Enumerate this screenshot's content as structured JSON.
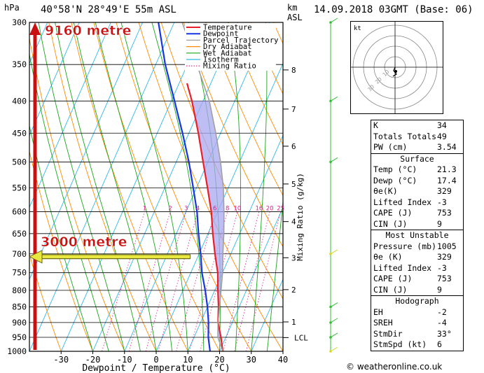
{
  "header": {
    "hpa_label": "hPa",
    "location": "40°58'N  28°49'E  55m  ASL",
    "km_label": "km",
    "asl_label": "ASL",
    "datetime": "14.09.2018  03GMT  (Base: 06)"
  },
  "colors": {
    "temperature": "#e8202a",
    "dewpoint": "#1636e6",
    "parcel": "#a0a0a0",
    "dry_adiabat": "#ff8c00",
    "wet_adiabat": "#1aa51a",
    "isotherm": "#30b8e8",
    "mixing_ratio": "#e0208a",
    "cape_fill": "#a8a8f0",
    "annotation_red": "#c81010",
    "annotation_yellow": "#e8e840",
    "wind_barb": "#30c030"
  },
  "chart_data": {
    "type": "line",
    "title": "",
    "xlabel": "Dewpoint / Temperature (°C)",
    "ylabel": "hPa",
    "right_axis_label": "Mixing Ratio (g/kg)",
    "xlim": [
      -40,
      40
    ],
    "ylim": [
      1000,
      300
    ],
    "y_scale": "log",
    "x_ticks": [
      -30,
      -20,
      -10,
      0,
      10,
      20,
      30,
      40
    ],
    "pressure_ticks": [
      300,
      350,
      400,
      450,
      500,
      550,
      600,
      650,
      700,
      750,
      800,
      850,
      900,
      950,
      1000
    ],
    "km_ticks": [
      {
        "label": "8",
        "p": 357
      },
      {
        "label": "7",
        "p": 412
      },
      {
        "label": "6",
        "p": 472
      },
      {
        "label": "5",
        "p": 542
      },
      {
        "label": "4",
        "p": 622
      },
      {
        "label": "3",
        "p": 710
      },
      {
        "label": "2",
        "p": 798
      },
      {
        "label": "1",
        "p": 898
      },
      {
        "label": "LCL",
        "p": 951
      }
    ],
    "mixing_ratio_labels": [
      "1",
      "2",
      "3",
      "4",
      "6",
      "8",
      "10",
      "16",
      "20",
      "25"
    ],
    "mixing_ratio_values": [
      1,
      2,
      3,
      4,
      6,
      8,
      10,
      16,
      20,
      25
    ],
    "legend": [
      "Temperature",
      "Dewpoint",
      "Parcel Trajectory",
      "Dry Adiabat",
      "Wet Adiabat",
      "Isotherm",
      "Mixing Ratio"
    ],
    "series": [
      {
        "name": "Temperature",
        "points": [
          [
            1005,
            21.3
          ],
          [
            1000,
            21.0
          ],
          [
            950,
            18.5
          ],
          [
            900,
            15.5
          ],
          [
            850,
            13.5
          ],
          [
            800,
            11.0
          ],
          [
            750,
            8.5
          ],
          [
            700,
            5.0
          ],
          [
            650,
            1.5
          ],
          [
            600,
            -2.0
          ],
          [
            550,
            -6.5
          ],
          [
            500,
            -11.5
          ],
          [
            450,
            -17.0
          ],
          [
            400,
            -23.5
          ],
          [
            375,
            -27.5
          ]
        ]
      },
      {
        "name": "Dewpoint",
        "points": [
          [
            1005,
            17.4
          ],
          [
            1000,
            17.0
          ],
          [
            950,
            14.5
          ],
          [
            900,
            12.5
          ],
          [
            850,
            10.0
          ],
          [
            800,
            7.0
          ],
          [
            750,
            3.5
          ],
          [
            700,
            0.5
          ],
          [
            650,
            -3.0
          ],
          [
            600,
            -6.5
          ],
          [
            550,
            -11.0
          ],
          [
            500,
            -16.0
          ],
          [
            450,
            -22.0
          ],
          [
            400,
            -29.0
          ],
          [
            350,
            -37.0
          ],
          [
            300,
            -45.0
          ]
        ]
      },
      {
        "name": "Parcel Trajectory",
        "points": [
          [
            1000,
            21.0
          ],
          [
            950,
            17.5
          ],
          [
            900,
            15.5
          ],
          [
            850,
            13.8
          ],
          [
            800,
            12.0
          ],
          [
            750,
            10.0
          ],
          [
            700,
            7.5
          ],
          [
            650,
            5.0
          ],
          [
            600,
            2.0
          ],
          [
            550,
            -1.5
          ],
          [
            500,
            -6.0
          ],
          [
            450,
            -11.5
          ],
          [
            400,
            -18.0
          ],
          [
            350,
            -27.0
          ],
          [
            300,
            -37.5
          ]
        ]
      }
    ],
    "annotations": [
      {
        "text": "9160 metre",
        "p": 300
      },
      {
        "text": "3000 metre",
        "p": 700
      }
    ]
  },
  "hodograph": {
    "unit_label": "kt",
    "ring_labels": [
      "10",
      "20",
      "30"
    ]
  },
  "indices": [
    {
      "label": "K",
      "value": "34"
    },
    {
      "label": "Totals Totals",
      "value": "49"
    },
    {
      "label": "PW (cm)",
      "value": "3.54"
    }
  ],
  "surface": {
    "title": "Surface",
    "rows": [
      {
        "label": "Temp (°C)",
        "value": "21.3"
      },
      {
        "label": "Dewp (°C)",
        "value": "17.4"
      },
      {
        "label": "θe(K)",
        "value": "329"
      },
      {
        "label": "Lifted Index",
        "value": "-3"
      },
      {
        "label": "CAPE (J)",
        "value": "753"
      },
      {
        "label": "CIN (J)",
        "value": "9"
      }
    ]
  },
  "most_unstable": {
    "title": "Most Unstable",
    "rows": [
      {
        "label": "Pressure (mb)",
        "value": "1005"
      },
      {
        "label": "θe (K)",
        "value": "329"
      },
      {
        "label": "Lifted Index",
        "value": "-3"
      },
      {
        "label": "CAPE (J)",
        "value": "753"
      },
      {
        "label": "CIN (J)",
        "value": "9"
      }
    ]
  },
  "hodograph_table": {
    "title": "Hodograph",
    "rows": [
      {
        "label": "EH",
        "value": "-2"
      },
      {
        "label": "SREH",
        "value": "-4"
      },
      {
        "label": "StmDir",
        "value": "33°"
      },
      {
        "label": "StmSpd (kt)",
        "value": "6"
      }
    ]
  },
  "credit": "© weatheronline.co.uk"
}
